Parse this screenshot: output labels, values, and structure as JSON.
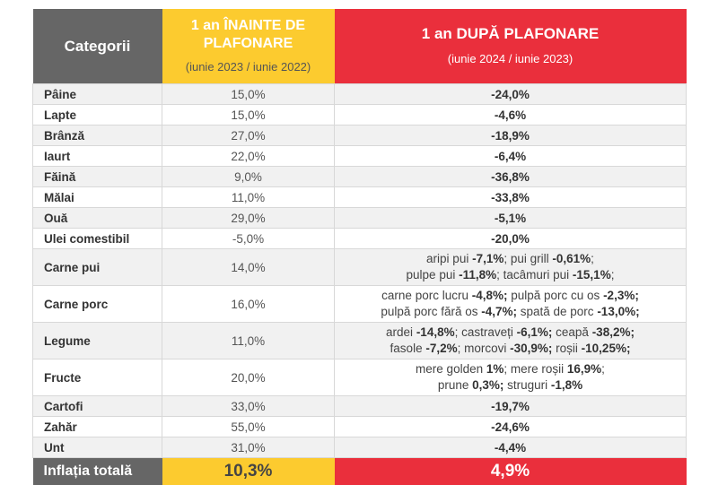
{
  "header": {
    "col1": "Categorii",
    "col2_title": "1 an ÎNAINTE DE PLAFONARE",
    "col2_sub": "(iunie 2023 / iunie 2022)",
    "col3_title": "1 an DUPĂ PLAFONARE",
    "col3_sub": "(iunie 2024 / iunie 2023)"
  },
  "colors": {
    "gray": "#666666",
    "yellow": "#fccb2f",
    "red": "#ea2f3c"
  },
  "rows": [
    {
      "cat": "Pâine",
      "before": "15,0%",
      "after": "-24,0%"
    },
    {
      "cat": "Lapte",
      "before": "15,0%",
      "after": "-4,6%"
    },
    {
      "cat": "Brânză",
      "before": "27,0%",
      "after": "-18,9%"
    },
    {
      "cat": "Iaurt",
      "before": "22,0%",
      "after": "-6,4%"
    },
    {
      "cat": "Făină",
      "before": "9,0%",
      "after": "-36,8%"
    },
    {
      "cat": "Mălai",
      "before": "11,0%",
      "after": "-33,8%"
    },
    {
      "cat": "Ouă",
      "before": "29,0%",
      "after": "-5,1%"
    },
    {
      "cat": "Ulei comestibil",
      "before": "-5,0%",
      "after": "-20,0%"
    },
    {
      "cat": "Carne pui",
      "before": "14,0%",
      "after_parts": [
        [
          {
            "t": "aripi pui "
          },
          {
            "t": "-7,1%",
            "b": true
          },
          {
            "t": "; pui grill "
          },
          {
            "t": "-0,61%",
            "b": true
          },
          {
            "t": ";"
          }
        ],
        [
          {
            "t": "pulpe pui "
          },
          {
            "t": "-11,8%",
            "b": true
          },
          {
            "t": "; tacâmuri pui "
          },
          {
            "t": "-15,1%",
            "b": true
          },
          {
            "t": ";"
          }
        ]
      ]
    },
    {
      "cat": "Carne porc",
      "before": "16,0%",
      "after_parts": [
        [
          {
            "t": "carne porc lucru "
          },
          {
            "t": "-4,8%;",
            "b": true
          },
          {
            "t": " pulpă porc cu os "
          },
          {
            "t": "-2,3%;",
            "b": true
          }
        ],
        [
          {
            "t": "pulpă porc fără os "
          },
          {
            "t": "-4,7%;",
            "b": true
          },
          {
            "t": " spată de porc "
          },
          {
            "t": "-13,0%;",
            "b": true
          }
        ]
      ]
    },
    {
      "cat": "Legume",
      "before": "11,0%",
      "after_parts": [
        [
          {
            "t": "ardei "
          },
          {
            "t": "-14,8%",
            "b": true
          },
          {
            "t": "; castraveți "
          },
          {
            "t": "-6,1%;",
            "b": true
          },
          {
            "t": " ceapă "
          },
          {
            "t": "-38,2%;",
            "b": true
          }
        ],
        [
          {
            "t": "fasole "
          },
          {
            "t": "-7,2%",
            "b": true
          },
          {
            "t": "; morcovi "
          },
          {
            "t": "-30,9%;",
            "b": true
          },
          {
            "t": " roșii "
          },
          {
            "t": "-10,25%;",
            "b": true
          }
        ]
      ]
    },
    {
      "cat": "Fructe",
      "before": "20,0%",
      "after_parts": [
        [
          {
            "t": "mere golden "
          },
          {
            "t": "1%",
            "b": true
          },
          {
            "t": "; mere roșii "
          },
          {
            "t": "16,9%",
            "b": true
          },
          {
            "t": ";"
          }
        ],
        [
          {
            "t": "prune "
          },
          {
            "t": "0,3%;",
            "b": true
          },
          {
            "t": " struguri "
          },
          {
            "t": "-1,8%",
            "b": true
          }
        ]
      ]
    },
    {
      "cat": "Cartofi",
      "before": "33,0%",
      "after": "-19,7%"
    },
    {
      "cat": "Zahăr",
      "before": "55,0%",
      "after": "-24,6%"
    },
    {
      "cat": "Unt",
      "before": "31,0%",
      "after": "-4,4%"
    }
  ],
  "total": {
    "cat": "Inflația totală",
    "before": "10,3%",
    "after": "4,9%"
  }
}
